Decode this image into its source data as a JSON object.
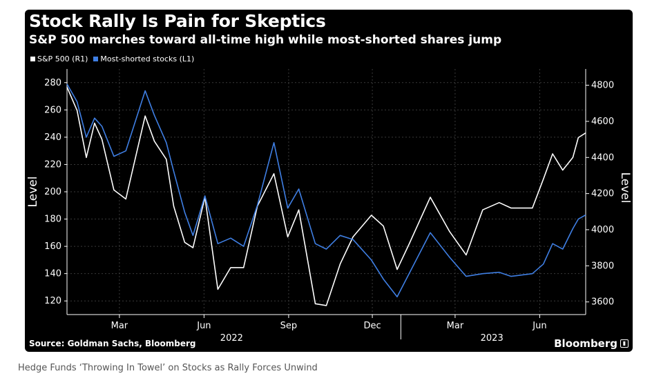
{
  "chart_data": {
    "type": "line",
    "title": "Stock Rally Is Pain for Skeptics",
    "subtitle": "S&P 500 marches toward all-time high while most-shorted shares jump",
    "source": "Source: Goldman Sachs, Bloomberg",
    "brand": "Bloomberg",
    "left_axis": {
      "label": "Level",
      "ylim": [
        110,
        290
      ],
      "ticks": [
        120,
        140,
        160,
        180,
        200,
        220,
        240,
        260,
        280
      ]
    },
    "right_axis": {
      "label": "Level",
      "ylim": [
        3530,
        4890
      ],
      "ticks": [
        3600,
        3800,
        4000,
        4200,
        4400,
        4600,
        4800
      ]
    },
    "x_axis": {
      "range": [
        "2022-01-03",
        "2023-07-21"
      ],
      "month_ticks": [
        {
          "label": "Mar",
          "date": "2022-03-01"
        },
        {
          "label": "Jun",
          "date": "2022-06-01"
        },
        {
          "label": "Sep",
          "date": "2022-09-01"
        },
        {
          "label": "Dec",
          "date": "2022-12-01"
        },
        {
          "label": "Mar",
          "date": "2023-03-01"
        },
        {
          "label": "Jun",
          "date": "2023-06-01"
        }
      ],
      "years": [
        {
          "label": "2022",
          "center": "2022-07-01"
        },
        {
          "label": "2023",
          "center": "2023-04-10"
        }
      ],
      "year_boundary": "2023-01-01"
    },
    "grid": true,
    "legend_placement": "top-left",
    "series": [
      {
        "name": "S&P 500 (R1)",
        "axis": "right",
        "color": "#ffffff",
        "points": [
          [
            "2022-01-03",
            4790
          ],
          [
            "2022-01-14",
            4660
          ],
          [
            "2022-01-24",
            4400
          ],
          [
            "2022-02-02",
            4590
          ],
          [
            "2022-02-10",
            4500
          ],
          [
            "2022-02-23",
            4220
          ],
          [
            "2022-03-08",
            4170
          ],
          [
            "2022-03-29",
            4630
          ],
          [
            "2022-04-08",
            4490
          ],
          [
            "2022-04-21",
            4390
          ],
          [
            "2022-04-29",
            4130
          ],
          [
            "2022-05-11",
            3930
          ],
          [
            "2022-05-20",
            3900
          ],
          [
            "2022-06-02",
            4180
          ],
          [
            "2022-06-16",
            3670
          ],
          [
            "2022-06-30",
            3790
          ],
          [
            "2022-07-14",
            3790
          ],
          [
            "2022-07-29",
            4130
          ],
          [
            "2022-08-16",
            4310
          ],
          [
            "2022-08-31",
            3960
          ],
          [
            "2022-09-12",
            4110
          ],
          [
            "2022-09-30",
            3590
          ],
          [
            "2022-10-12",
            3580
          ],
          [
            "2022-10-27",
            3810
          ],
          [
            "2022-11-10",
            3960
          ],
          [
            "2022-11-30",
            4080
          ],
          [
            "2022-12-13",
            4020
          ],
          [
            "2022-12-28",
            3780
          ],
          [
            "2023-01-10",
            3920
          ],
          [
            "2023-02-02",
            4180
          ],
          [
            "2023-02-23",
            3990
          ],
          [
            "2023-03-13",
            3860
          ],
          [
            "2023-03-31",
            4110
          ],
          [
            "2023-04-18",
            4150
          ],
          [
            "2023-05-01",
            4120
          ],
          [
            "2023-05-24",
            4120
          ],
          [
            "2023-06-05",
            4280
          ],
          [
            "2023-06-15",
            4420
          ],
          [
            "2023-06-26",
            4330
          ],
          [
            "2023-07-07",
            4400
          ],
          [
            "2023-07-13",
            4510
          ],
          [
            "2023-07-21",
            4536
          ]
        ]
      },
      {
        "name": "Most-shorted stocks (L1)",
        "axis": "left",
        "color": "#3f7fe4",
        "points": [
          [
            "2022-01-03",
            279
          ],
          [
            "2022-01-14",
            266
          ],
          [
            "2022-01-24",
            240
          ],
          [
            "2022-02-02",
            254
          ],
          [
            "2022-02-10",
            248
          ],
          [
            "2022-02-23",
            226
          ],
          [
            "2022-03-08",
            230
          ],
          [
            "2022-03-29",
            274
          ],
          [
            "2022-04-08",
            256
          ],
          [
            "2022-04-21",
            236
          ],
          [
            "2022-04-29",
            215
          ],
          [
            "2022-05-11",
            185
          ],
          [
            "2022-05-20",
            168
          ],
          [
            "2022-06-02",
            197
          ],
          [
            "2022-06-16",
            162
          ],
          [
            "2022-06-30",
            166
          ],
          [
            "2022-07-14",
            160
          ],
          [
            "2022-07-29",
            190
          ],
          [
            "2022-08-16",
            236
          ],
          [
            "2022-08-31",
            188
          ],
          [
            "2022-09-12",
            202
          ],
          [
            "2022-09-30",
            162
          ],
          [
            "2022-10-12",
            158
          ],
          [
            "2022-10-27",
            168
          ],
          [
            "2022-11-10",
            165
          ],
          [
            "2022-11-30",
            150
          ],
          [
            "2022-12-13",
            136
          ],
          [
            "2022-12-28",
            123
          ],
          [
            "2023-01-10",
            140
          ],
          [
            "2023-02-02",
            170
          ],
          [
            "2023-02-23",
            152
          ],
          [
            "2023-03-13",
            138
          ],
          [
            "2023-03-31",
            140
          ],
          [
            "2023-04-18",
            141
          ],
          [
            "2023-05-01",
            138
          ],
          [
            "2023-05-24",
            140
          ],
          [
            "2023-06-05",
            147
          ],
          [
            "2023-06-15",
            162
          ],
          [
            "2023-06-26",
            158
          ],
          [
            "2023-07-07",
            173
          ],
          [
            "2023-07-13",
            180
          ],
          [
            "2023-07-21",
            183
          ]
        ]
      }
    ]
  },
  "caption": "Hedge Funds ‘Throwing In Towel’ on Stocks as Rally Forces Unwind"
}
